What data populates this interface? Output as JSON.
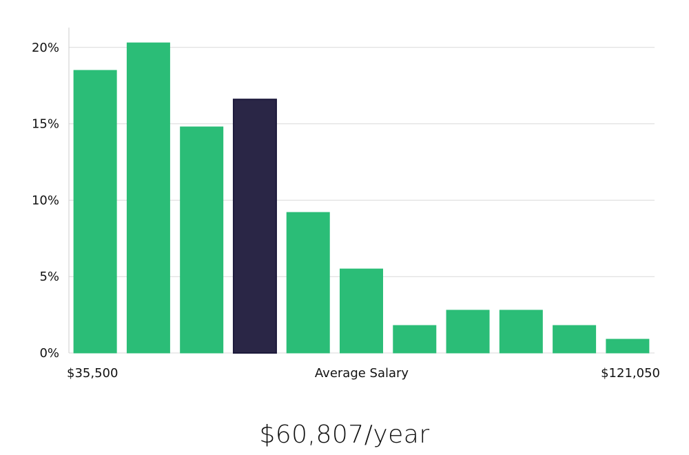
{
  "chart_data": {
    "type": "bar",
    "title": "",
    "xlabel": "Average Salary",
    "ylabel": "",
    "x_min_label": "$35,500",
    "x_max_label": "$121,050",
    "values": [
      18.5,
      20.3,
      14.8,
      16.6,
      9.2,
      5.5,
      1.8,
      2.8,
      2.8,
      1.8,
      0.9
    ],
    "highlight_index": 3,
    "ylim": [
      0,
      21.3
    ],
    "y_ticks": [
      0,
      5,
      10,
      15,
      20
    ],
    "y_tick_labels": [
      "0%",
      "5%",
      "10%",
      "15%",
      "20%"
    ],
    "grid": true,
    "colors": {
      "bar": "#2bbd77",
      "bar_highlight": "#2a2646",
      "bar_highlight_border": "#1d1a3c"
    }
  },
  "summary": {
    "salary_text": "$60,807/year"
  }
}
